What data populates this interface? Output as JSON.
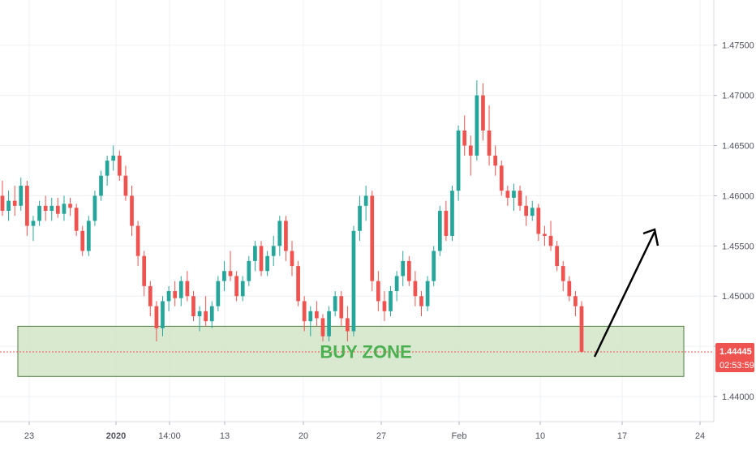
{
  "chart_data": {
    "type": "candlestick",
    "title": "",
    "xlabel": "",
    "ylabel": "",
    "ylim": [
      1.4375,
      1.4795
    ],
    "yticks": [
      1.44,
      1.445,
      1.45,
      1.455,
      1.46,
      1.465,
      1.47,
      1.475
    ],
    "ytick_labels": [
      "1.44000",
      "1.44500",
      "1.45000",
      "1.45500",
      "1.46000",
      "1.46500",
      "1.47000",
      "1.47500"
    ],
    "xtick_labels": [
      "23",
      "2020",
      "14:00",
      "13",
      "20",
      "27",
      "Feb",
      "10",
      "17",
      "24"
    ],
    "xtick_bold": [
      "2020"
    ],
    "grid": true,
    "current_price": 1.44445,
    "current_price_label": "1.44445",
    "countdown_label": "02:53:59",
    "annotations": [
      {
        "type": "zone",
        "label": "BUY ZONE",
        "y_top": 1.447,
        "y_bottom": 1.442
      },
      {
        "type": "arrow",
        "direction": "up"
      }
    ],
    "colors": {
      "up": "#26a69a",
      "down": "#ef5350",
      "zone_fill": "#d4e7cb",
      "zone_text": "#4caf50",
      "price_badge": "#ef5350",
      "grid": "#eef0f3"
    },
    "series": [
      {
        "values": [
          [
            1.46,
            1.4615,
            1.458,
            1.4585
          ],
          [
            1.4585,
            1.4605,
            1.4575,
            1.4595
          ],
          [
            1.4595,
            1.461,
            1.458,
            1.459
          ],
          [
            1.459,
            1.4618,
            1.4585,
            1.461
          ],
          [
            1.461,
            1.4615,
            1.456,
            1.457
          ],
          [
            1.457,
            1.458,
            1.4555,
            1.4575
          ],
          [
            1.4575,
            1.4595,
            1.457,
            1.459
          ],
          [
            1.459,
            1.46,
            1.4575,
            1.4585
          ],
          [
            1.4585,
            1.4598,
            1.4575,
            1.459
          ],
          [
            1.459,
            1.4598,
            1.4578,
            1.4582
          ],
          [
            1.4582,
            1.46,
            1.4575,
            1.4592
          ],
          [
            1.4592,
            1.4598,
            1.458,
            1.4588
          ],
          [
            1.4588,
            1.4592,
            1.456,
            1.4565
          ],
          [
            1.4565,
            1.457,
            1.454,
            1.4545
          ],
          [
            1.4545,
            1.458,
            1.454,
            1.4575
          ],
          [
            1.4575,
            1.4605,
            1.457,
            1.46
          ],
          [
            1.46,
            1.4625,
            1.4595,
            1.462
          ],
          [
            1.462,
            1.464,
            1.461,
            1.4635
          ],
          [
            1.4635,
            1.465,
            1.4625,
            1.464
          ],
          [
            1.464,
            1.4645,
            1.4615,
            1.462
          ],
          [
            1.462,
            1.463,
            1.4595,
            1.46
          ],
          [
            1.46,
            1.461,
            1.456,
            1.457
          ],
          [
            1.457,
            1.4575,
            1.453,
            1.454
          ],
          [
            1.454,
            1.4545,
            1.45,
            1.451
          ],
          [
            1.451,
            1.4515,
            1.448,
            1.449
          ],
          [
            1.449,
            1.4495,
            1.4455,
            1.4468
          ],
          [
            1.4468,
            1.45,
            1.446,
            1.4495
          ],
          [
            1.4495,
            1.451,
            1.4485,
            1.4505
          ],
          [
            1.4505,
            1.4515,
            1.449,
            1.4498
          ],
          [
            1.4498,
            1.452,
            1.449,
            1.4515
          ],
          [
            1.4515,
            1.4525,
            1.4495,
            1.45
          ],
          [
            1.45,
            1.4505,
            1.4475,
            1.448
          ],
          [
            1.448,
            1.449,
            1.4465,
            1.4485
          ],
          [
            1.4485,
            1.45,
            1.447,
            1.4475
          ],
          [
            1.4475,
            1.4495,
            1.4468,
            1.449
          ],
          [
            1.449,
            1.452,
            1.4485,
            1.4515
          ],
          [
            1.4515,
            1.4535,
            1.4505,
            1.4525
          ],
          [
            1.4525,
            1.4545,
            1.4515,
            1.452
          ],
          [
            1.452,
            1.4525,
            1.4495,
            1.45
          ],
          [
            1.45,
            1.452,
            1.4495,
            1.4515
          ],
          [
            1.4515,
            1.454,
            1.451,
            1.4535
          ],
          [
            1.4535,
            1.4555,
            1.4525,
            1.455
          ],
          [
            1.455,
            1.4555,
            1.452,
            1.4525
          ],
          [
            1.4525,
            1.4545,
            1.452,
            1.454
          ],
          [
            1.454,
            1.456,
            1.453,
            1.455
          ],
          [
            1.455,
            1.458,
            1.454,
            1.4575
          ],
          [
            1.4575,
            1.458,
            1.4535,
            1.4545
          ],
          [
            1.4545,
            1.4555,
            1.452,
            1.453
          ],
          [
            1.453,
            1.4535,
            1.449,
            1.4495
          ],
          [
            1.4495,
            1.45,
            1.4465,
            1.4475
          ],
          [
            1.4475,
            1.449,
            1.446,
            1.4485
          ],
          [
            1.4485,
            1.4495,
            1.447,
            1.4478
          ],
          [
            1.4478,
            1.4482,
            1.4455,
            1.446
          ],
          [
            1.446,
            1.449,
            1.4455,
            1.4485
          ],
          [
            1.4485,
            1.4505,
            1.448,
            1.45
          ],
          [
            1.45,
            1.4505,
            1.447,
            1.4478
          ],
          [
            1.4478,
            1.449,
            1.4455,
            1.4465
          ],
          [
            1.4465,
            1.457,
            1.446,
            1.4565
          ],
          [
            1.4565,
            1.46,
            1.4555,
            1.459
          ],
          [
            1.459,
            1.461,
            1.4575,
            1.46
          ],
          [
            1.46,
            1.4605,
            1.4505,
            1.4515
          ],
          [
            1.4515,
            1.4525,
            1.4485,
            1.4495
          ],
          [
            1.4495,
            1.4505,
            1.4475,
            1.4485
          ],
          [
            1.4485,
            1.451,
            1.448,
            1.4505
          ],
          [
            1.4505,
            1.4525,
            1.4495,
            1.452
          ],
          [
            1.452,
            1.4545,
            1.451,
            1.4535
          ],
          [
            1.4535,
            1.454,
            1.451,
            1.4515
          ],
          [
            1.4515,
            1.4525,
            1.449,
            1.45
          ],
          [
            1.45,
            1.4505,
            1.448,
            1.449
          ],
          [
            1.449,
            1.452,
            1.4485,
            1.4515
          ],
          [
            1.4515,
            1.455,
            1.451,
            1.4545
          ],
          [
            1.4545,
            1.459,
            1.454,
            1.4585
          ],
          [
            1.4585,
            1.4595,
            1.4555,
            1.456
          ],
          [
            1.456,
            1.461,
            1.4555,
            1.4605
          ],
          [
            1.4605,
            1.467,
            1.4595,
            1.4665
          ],
          [
            1.4665,
            1.468,
            1.464,
            1.465
          ],
          [
            1.465,
            1.466,
            1.462,
            1.464
          ],
          [
            1.464,
            1.4715,
            1.4635,
            1.47
          ],
          [
            1.47,
            1.4712,
            1.4655,
            1.4665
          ],
          [
            1.4665,
            1.469,
            1.463,
            1.464
          ],
          [
            1.464,
            1.465,
            1.462,
            1.463
          ],
          [
            1.463,
            1.4635,
            1.46,
            1.4605
          ],
          [
            1.4605,
            1.461,
            1.459,
            1.4598
          ],
          [
            1.4598,
            1.4612,
            1.4585,
            1.4605
          ],
          [
            1.4605,
            1.461,
            1.4585,
            1.459
          ],
          [
            1.459,
            1.46,
            1.457,
            1.458
          ],
          [
            1.458,
            1.4595,
            1.4575,
            1.4588
          ],
          [
            1.4588,
            1.4592,
            1.4555,
            1.4562
          ],
          [
            1.4562,
            1.457,
            1.455,
            1.456
          ],
          [
            1.456,
            1.4575,
            1.4545,
            1.455
          ],
          [
            1.455,
            1.4555,
            1.4525,
            1.453
          ],
          [
            1.453,
            1.4535,
            1.4505,
            1.4515
          ],
          [
            1.4515,
            1.452,
            1.4495,
            1.45
          ],
          [
            1.45,
            1.4505,
            1.448,
            1.449
          ],
          [
            1.449,
            1.4495,
            1.4444,
            1.44445
          ]
        ]
      }
    ]
  }
}
